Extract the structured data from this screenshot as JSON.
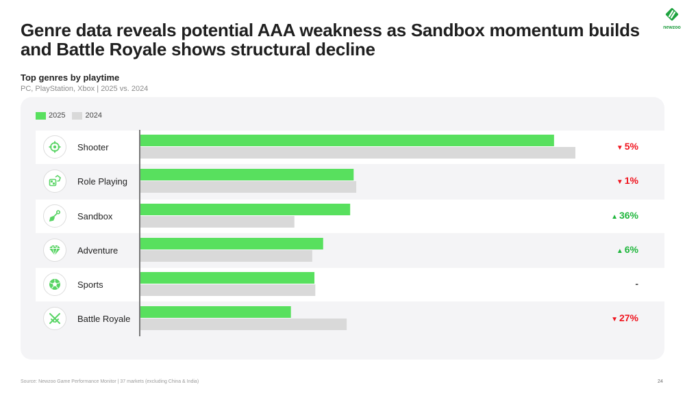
{
  "header": {
    "title": "Genre data reveals potential AAA weakness as Sandbox momentum builds and Battle Royale shows structural decline",
    "logo_text": "newzoo"
  },
  "chart_data": {
    "type": "bar",
    "orientation": "horizontal",
    "title": "Top genres by playtime",
    "subtitle": "PC, PlayStation, Xbox | 2025 vs. 2024",
    "xlabel": "",
    "ylabel": "",
    "value_units": "relative playtime (Shooter 2024 = 100; no value axis shown)",
    "xlim": [
      0,
      100
    ],
    "grid": false,
    "legend_position": "top-left",
    "categories": [
      "Shooter",
      "Role Playing",
      "Sandbox",
      "Adventure",
      "Sports",
      "Battle Royale"
    ],
    "category_icons": [
      "crosshair-icon",
      "dice-icon",
      "shovel-icon",
      "gem-icon",
      "soccer-ball-icon",
      "crossed-swords-icon"
    ],
    "series": [
      {
        "name": "2025",
        "color": "#58e05e",
        "values": [
          95.1,
          49.1,
          48.3,
          42.1,
          40.1,
          34.7
        ]
      },
      {
        "name": "2024",
        "color": "#d9d9d9",
        "values": [
          100,
          49.7,
          35.5,
          39.6,
          40.3,
          47.5
        ]
      }
    ],
    "changes": [
      {
        "label": "5%",
        "direction": "down"
      },
      {
        "label": "1%",
        "direction": "down"
      },
      {
        "label": "36%",
        "direction": "up"
      },
      {
        "label": "6%",
        "direction": "up"
      },
      {
        "label": "-",
        "direction": "none"
      },
      {
        "label": "27%",
        "direction": "down"
      }
    ]
  },
  "colors": {
    "up": "#1fb63c",
    "down": "#f0141e",
    "neutral": "#444444",
    "icon_green": "#58d464"
  },
  "symbols": {
    "up": "▲",
    "down": "▼"
  },
  "footer": {
    "source": "Source: Newzoo Game Performance Monitor | 37 markets (excluding China & India)",
    "page_number": "24"
  }
}
